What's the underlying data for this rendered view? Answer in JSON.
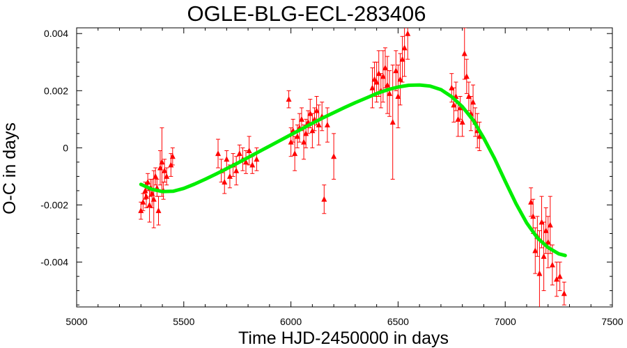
{
  "chart_data": {
    "type": "scatter",
    "title": "OGLE-BLG-ECL-283406",
    "xlabel": "Time HJD-2450000 in days",
    "ylabel": "O-C in days",
    "xlim": [
      5000,
      7500
    ],
    "ylim": [
      -0.00557,
      0.0042
    ],
    "x_ticks": [
      "5000",
      "5500",
      "6000",
      "6500",
      "7000",
      "7500"
    ],
    "y_ticks": [
      "-0.004",
      "-0.002",
      "0",
      "0.002",
      "0.004"
    ],
    "x_tick_values": [
      5000,
      5500,
      6000,
      6500,
      7000,
      7500
    ],
    "y_tick_values": [
      -0.004,
      -0.002,
      0,
      0.002,
      0.004
    ],
    "grid": false,
    "colors": {
      "points": "#ff0000",
      "fit": "#00ee00",
      "axes": "#000000"
    },
    "series": [
      {
        "kind": "points_with_errorbars",
        "marker": "triangle",
        "x": [
          5300,
          5310,
          5320,
          5325,
          5332,
          5340,
          5345,
          5352,
          5360,
          5368,
          5375,
          5382,
          5390,
          5398,
          5405,
          5410,
          5420,
          5440,
          5448,
          5660,
          5675,
          5690,
          5700,
          5715,
          5730,
          5745,
          5760,
          5775,
          5790,
          5805,
          5820,
          5840,
          5990,
          6000,
          6010,
          6018,
          6030,
          6040,
          6050,
          6060,
          6070,
          6080,
          6090,
          6100,
          6110,
          6120,
          6130,
          6145,
          6155,
          6170,
          6200,
          6380,
          6390,
          6400,
          6410,
          6420,
          6430,
          6440,
          6450,
          6460,
          6475,
          6490,
          6500,
          6510,
          6520,
          6530,
          6545,
          6750,
          6760,
          6770,
          6780,
          6790,
          6800,
          6810,
          6820,
          6830,
          6840,
          6850,
          6860,
          6870,
          6880,
          7120,
          7130,
          7140,
          7150,
          7160,
          7170,
          7180,
          7190,
          7200,
          7210,
          7220,
          7240,
          7255,
          7275
        ],
        "y": [
          -0.0022,
          -0.0019,
          -0.0015,
          -0.0017,
          -0.0012,
          -0.002,
          -0.0014,
          -0.0016,
          -0.0018,
          -0.001,
          -0.0014,
          -0.0022,
          -0.0007,
          -0.0005,
          -0.0015,
          -0.0008,
          -0.001,
          -0.0006,
          -0.0003,
          -0.0002,
          -0.0008,
          -0.0012,
          -0.0004,
          -0.001,
          -0.0006,
          -0.0008,
          -0.0002,
          -0.0004,
          -0.0005,
          -0.0001,
          -0.0006,
          -0.0004,
          0.0017,
          0.0002,
          0.0006,
          -0.0002,
          0.0004,
          0.0007,
          0.001,
          0.0002,
          0.0005,
          0.0009,
          0.0012,
          0.0006,
          0.001,
          0.0013,
          0.0008,
          0.0011,
          -0.0018,
          0.0008,
          -0.0003,
          0.0021,
          0.0024,
          0.0023,
          0.0026,
          0.002,
          0.0025,
          0.0028,
          0.0022,
          0.0019,
          0.0009,
          0.0027,
          0.0018,
          0.0024,
          0.0031,
          0.0035,
          0.004,
          0.0021,
          0.0015,
          0.0018,
          0.001,
          0.0014,
          0.0009,
          0.0033,
          0.0025,
          0.0018,
          0.0012,
          0.0016,
          0.0009,
          0.0006,
          0.0004,
          -0.0019,
          -0.0024,
          -0.0036,
          -0.0031,
          -0.0044,
          -0.0026,
          -0.0038,
          -0.0029,
          -0.0033,
          -0.0027,
          -0.0041,
          -0.0046,
          -0.0045,
          -0.0051
        ],
        "err": [
          0.0003,
          0.0003,
          0.0003,
          0.0004,
          0.0003,
          0.0006,
          0.0003,
          0.0005,
          0.001,
          0.0003,
          0.0003,
          0.0005,
          0.0006,
          0.0012,
          0.0003,
          0.0004,
          0.0003,
          0.0004,
          0.0003,
          0.0005,
          0.0004,
          0.0004,
          0.0003,
          0.0004,
          0.0004,
          0.0005,
          0.0003,
          0.0004,
          0.0004,
          0.0005,
          0.0003,
          0.0004,
          0.0003,
          0.0005,
          0.0004,
          0.0006,
          0.0004,
          0.0005,
          0.0004,
          0.0006,
          0.0005,
          0.0004,
          0.0005,
          0.0006,
          0.0004,
          0.0005,
          0.0007,
          0.0005,
          0.0005,
          0.0006,
          0.0008,
          0.0007,
          0.0006,
          0.0007,
          0.0008,
          0.0006,
          0.0009,
          0.0007,
          0.001,
          0.0008,
          0.002,
          0.0007,
          0.0011,
          0.0009,
          0.0008,
          0.001,
          0.0009,
          0.0005,
          0.0006,
          0.0005,
          0.0006,
          0.0004,
          0.0005,
          0.0009,
          0.0006,
          0.0005,
          0.0006,
          0.0006,
          0.0005,
          0.0006,
          0.0005,
          0.0005,
          0.0006,
          0.0008,
          0.0007,
          0.0015,
          0.0009,
          0.0012,
          0.0008,
          0.0009,
          0.001,
          0.0007,
          0.0006,
          0.0005,
          0.0004
        ]
      },
      {
        "kind": "fit_curve",
        "x": [
          5300,
          5350,
          5400,
          5450,
          5500,
          5550,
          5600,
          5650,
          5700,
          5750,
          5800,
          5850,
          5900,
          5950,
          6000,
          6050,
          6100,
          6150,
          6200,
          6250,
          6300,
          6350,
          6400,
          6450,
          6500,
          6550,
          6600,
          6650,
          6700,
          6750,
          6800,
          6850,
          6900,
          6950,
          7000,
          7050,
          7100,
          7150,
          7200,
          7250,
          7280
        ],
        "y": [
          -0.00128,
          -0.00145,
          -0.00153,
          -0.00152,
          -0.00142,
          -0.00127,
          -0.0011,
          -0.00092,
          -0.00073,
          -0.00054,
          -0.00034,
          -0.00014,
          6e-05,
          0.00026,
          0.00046,
          0.00066,
          0.00086,
          0.00105,
          0.00123,
          0.00141,
          0.00158,
          0.00174,
          0.0019,
          0.00203,
          0.00213,
          0.00219,
          0.0022,
          0.00216,
          0.00204,
          0.00179,
          0.00144,
          0.00097,
          0.00034,
          -0.00037,
          -0.00117,
          -0.00195,
          -0.00263,
          -0.00315,
          -0.00349,
          -0.00371,
          -0.00377
        ]
      }
    ]
  }
}
